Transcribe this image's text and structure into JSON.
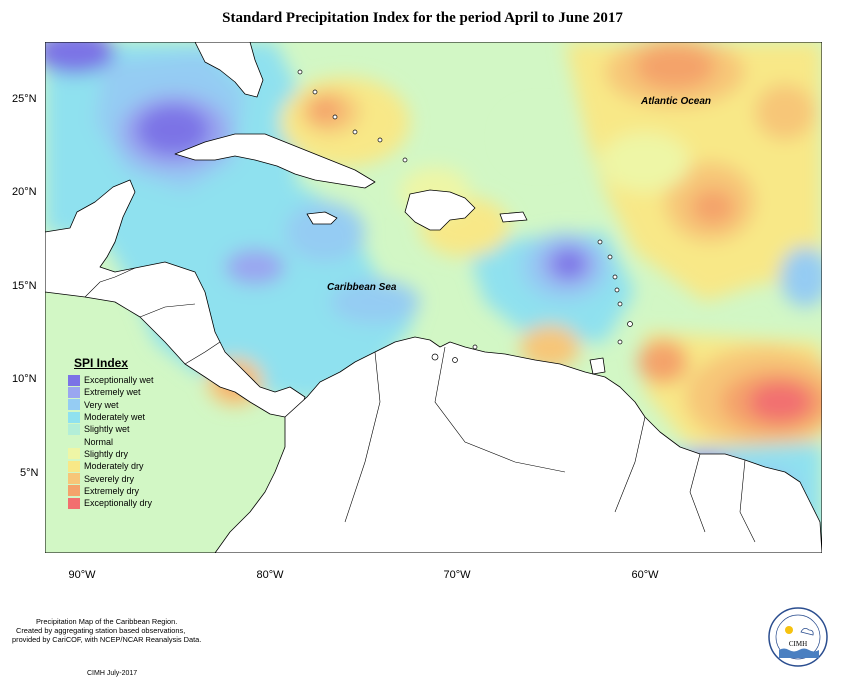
{
  "title": "Standard Precipitation Index for the period April to June 2017",
  "map_labels": {
    "atlantic": "Atlantic Ocean",
    "caribbean": "Caribbean Sea"
  },
  "axes": {
    "y_ticks": [
      "25°N",
      "20°N",
      "15°N",
      "10°N",
      "5°N"
    ],
    "x_ticks": [
      "90°W",
      "80°W",
      "70°W",
      "60°W"
    ]
  },
  "legend": {
    "title": "SPI Index",
    "items": [
      {
        "label": "Exceptionally wet",
        "color": "#7b73e6"
      },
      {
        "label": "Extremely wet",
        "color": "#9aa6f0"
      },
      {
        "label": "Very wet",
        "color": "#95ccf3"
      },
      {
        "label": "Moderately wet",
        "color": "#8fe1ef"
      },
      {
        "label": "Slightly wet",
        "color": "#b3eed8"
      },
      {
        "label": "Normal",
        "color": "#d2f7c5"
      },
      {
        "label": "Slightly dry",
        "color": "#eef6a6"
      },
      {
        "label": "Moderately dry",
        "color": "#f8e887"
      },
      {
        "label": "Severely dry",
        "color": "#f7c678"
      },
      {
        "label": "Extremely dry",
        "color": "#f4a36b"
      },
      {
        "label": "Exceptionally dry",
        "color": "#f26f6f"
      }
    ]
  },
  "footer": {
    "line1": "Precipitation Map of the Caribbean Region.",
    "line2": "Created by aggregating station based observations,",
    "line3": "provided by CariCOF, with NCEP/NCAR Reanalysis Data.",
    "date": "CIMH July-2017"
  },
  "logo_text": "CIMH"
}
